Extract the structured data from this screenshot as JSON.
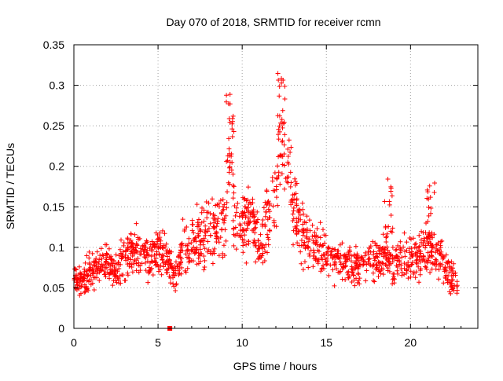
{
  "chart_data": {
    "type": "scatter",
    "title": "Day 070 of 2018, SRMTID for receiver rcmn",
    "xlabel": "GPS time / hours",
    "ylabel": "SRMTID / TECUs",
    "xlim": [
      0,
      24
    ],
    "ylim": [
      0,
      0.35
    ],
    "grid": true,
    "marker": "+",
    "x_ticks": [
      0,
      5,
      10,
      15,
      20
    ],
    "x_tick_labels": [
      "0",
      "5",
      "10",
      "15",
      "20"
    ],
    "y_ticks": [
      0,
      0.05,
      0.1,
      0.15,
      0.2,
      0.25,
      0.3,
      0.35
    ],
    "y_tick_labels": [
      "0",
      "0.05",
      "0.1",
      "0.15",
      "0.2",
      "0.25",
      "0.3",
      "0.35"
    ],
    "series": [
      {
        "name": "SRMTID",
        "color": "#ff0000",
        "description_trend": "binned mean of scattered points",
        "x": [
          0.0,
          0.5,
          1.0,
          1.5,
          2.0,
          2.5,
          3.0,
          3.5,
          4.0,
          4.5,
          5.0,
          5.5,
          6.0,
          6.5,
          7.0,
          7.5,
          8.0,
          8.5,
          9.0,
          9.3,
          9.5,
          10.0,
          10.5,
          11.0,
          11.5,
          12.0,
          12.3,
          12.6,
          13.0,
          13.5,
          14.0,
          14.5,
          15.0,
          15.5,
          16.0,
          16.5,
          17.0,
          17.5,
          18.0,
          18.5,
          19.0,
          19.5,
          20.0,
          20.5,
          21.0,
          21.5,
          22.0,
          22.5,
          22.8
        ],
        "y": [
          0.06,
          0.055,
          0.07,
          0.075,
          0.08,
          0.07,
          0.09,
          0.095,
          0.1,
          0.08,
          0.1,
          0.09,
          0.06,
          0.1,
          0.11,
          0.11,
          0.12,
          0.13,
          0.13,
          0.22,
          0.14,
          0.13,
          0.14,
          0.1,
          0.13,
          0.17,
          0.23,
          0.22,
          0.15,
          0.12,
          0.11,
          0.1,
          0.09,
          0.085,
          0.08,
          0.075,
          0.08,
          0.085,
          0.08,
          0.085,
          0.08,
          0.085,
          0.09,
          0.085,
          0.1,
          0.09,
          0.08,
          0.06,
          0.055
        ]
      }
    ],
    "peaks": [
      {
        "x": 9.3,
        "y": 0.29
      },
      {
        "x": 12.3,
        "y": 0.32
      },
      {
        "x": 18.7,
        "y": 0.2
      },
      {
        "x": 21.2,
        "y": 0.19
      }
    ],
    "outlier": {
      "x": 5.7,
      "y": 0.0
    }
  }
}
